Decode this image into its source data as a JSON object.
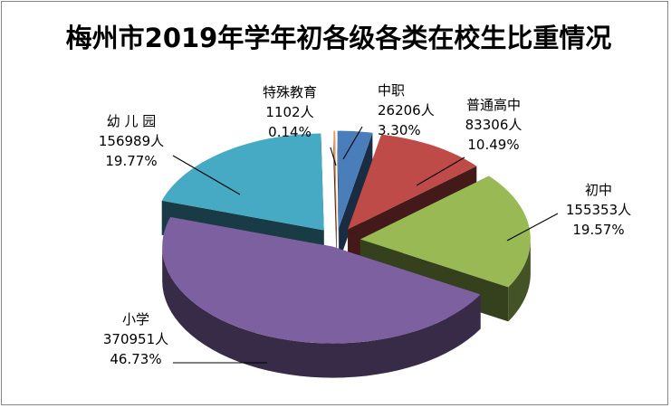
{
  "chart_data": {
    "type": "pie",
    "style": "3d-exploded",
    "title": "梅州市2019年学年初各级各类在校生比重情况",
    "slices": [
      {
        "key": "zhongzhi",
        "name": "中职",
        "count_label": "26206人",
        "value": 26206,
        "percent": 3.3,
        "percent_label": "3.30%",
        "color": "#4a7ebb"
      },
      {
        "key": "putonggaozhong",
        "name": "普通高中",
        "count_label": "83306人",
        "value": 83306,
        "percent": 10.49,
        "percent_label": "10.49%",
        "color": "#be4b48"
      },
      {
        "key": "chuzhong",
        "name": "初中",
        "count_label": "155353人",
        "value": 155353,
        "percent": 19.57,
        "percent_label": "19.57%",
        "color": "#98b954"
      },
      {
        "key": "xiaoxue",
        "name": "小学",
        "count_label": "370951人",
        "value": 370951,
        "percent": 46.73,
        "percent_label": "46.73%",
        "color": "#7d60a0"
      },
      {
        "key": "youeryuan",
        "name": "幼 儿 园",
        "count_label": "156989人",
        "value": 156989,
        "percent": 19.77,
        "percent_label": "19.77%",
        "color": "#46aac5"
      },
      {
        "key": "teshujiaoyu",
        "name": "特殊教育",
        "count_label": "1102人",
        "value": 1102,
        "percent": 0.14,
        "percent_label": "0.14%",
        "color": "#f79646"
      }
    ],
    "legend": "none"
  }
}
